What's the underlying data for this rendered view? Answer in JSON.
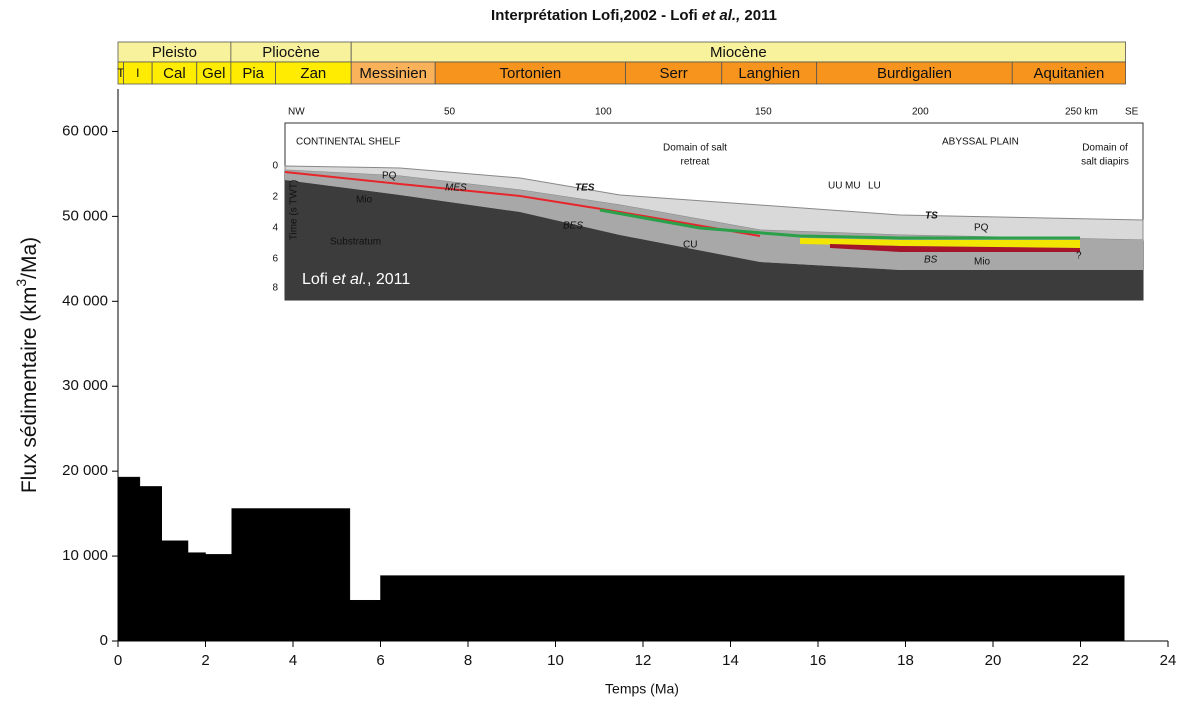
{
  "chart_data": {
    "type": "histogram",
    "title": [
      "Interprétation Lofi,2002 - Lofi ",
      "et al.,",
      "  2011"
    ],
    "ylabel": [
      "Flux sédimentaire (km",
      "3",
      "/Ma)"
    ],
    "xlabel": "Temps (Ma)",
    "bins": [
      0,
      0.5,
      1.0,
      1.6,
      2.0,
      2.6,
      5.3,
      6.0,
      23.0
    ],
    "values": [
      19300,
      18200,
      11800,
      10400,
      10200,
      15600,
      4800,
      7700
    ],
    "color": "#000000",
    "xlim": [
      0,
      24
    ],
    "xticks": [
      0,
      2,
      4,
      6,
      8,
      10,
      12,
      14,
      16,
      18,
      20,
      22,
      24
    ],
    "ylim": [
      0,
      65000
    ],
    "yticks": [
      0,
      {
        "value": 10000,
        "label": "10 000"
      },
      {
        "value": 20000,
        "label": "20 000"
      },
      {
        "value": 30000,
        "label": "30 000"
      },
      {
        "value": 40000,
        "label": "40 000"
      },
      {
        "value": 50000,
        "label": "50 000"
      },
      {
        "value": 60000,
        "label": "60 000"
      }
    ],
    "timescale": {
      "epochs": [
        {
          "name": "Pleisto",
          "start": 0,
          "end": 2.58,
          "color": "#f8f29c"
        },
        {
          "name": "Pliocène",
          "start": 2.58,
          "end": 5.33,
          "color": "#f8f29c"
        },
        {
          "name": "Miocène",
          "start": 5.33,
          "end": 23.03,
          "color": "#f8f29c"
        }
      ],
      "stages": [
        {
          "name": "T",
          "start": 0,
          "end": 0.126,
          "color": "#ffec00"
        },
        {
          "name": "I",
          "start": 0.126,
          "end": 0.78,
          "color": "#ffec00"
        },
        {
          "name": "Cal",
          "start": 0.78,
          "end": 1.8,
          "color": "#ffec00"
        },
        {
          "name": "Gel",
          "start": 1.8,
          "end": 2.58,
          "color": "#ffec00"
        },
        {
          "name": "Pia",
          "start": 2.58,
          "end": 3.6,
          "color": "#ffec00"
        },
        {
          "name": "Zan",
          "start": 3.6,
          "end": 5.33,
          "color": "#ffec00"
        },
        {
          "name": "Messinien",
          "start": 5.33,
          "end": 7.25,
          "color": "#f9b25a"
        },
        {
          "name": "Tortonien",
          "start": 7.25,
          "end": 11.6,
          "color": "#f7941d"
        },
        {
          "name": "Serr",
          "start": 11.6,
          "end": 13.8,
          "color": "#f7941d"
        },
        {
          "name": "Langhien",
          "start": 13.8,
          "end": 15.97,
          "color": "#f7941d"
        },
        {
          "name": "Burdigalien",
          "start": 15.97,
          "end": 20.44,
          "color": "#f7941d"
        },
        {
          "name": "Aquitanien",
          "start": 20.44,
          "end": 23.03,
          "color": "#f7941d"
        }
      ]
    }
  },
  "inset": {
    "nw": "NW",
    "se": "SE",
    "km": [
      "50",
      "100",
      "150",
      "200",
      "250 km"
    ],
    "depth": [
      "0",
      "2",
      "4",
      "6",
      "8"
    ],
    "time_axis": "Time (s TWT)",
    "shelf": "CONTINENTAL SHELF",
    "salt_retreat": [
      "Domain of salt",
      "retreat"
    ],
    "abyssal": "ABYSSAL PLAIN",
    "salt_diapirs": [
      "Domain of",
      "salt diapirs"
    ],
    "pq": "PQ",
    "mes": "MES",
    "mio": "Mio",
    "tes": "TES",
    "bes": "BES",
    "substratum": "Substratum",
    "cu": "CU",
    "uu": "UU",
    "mu": "MU",
    "lu": "LU",
    "ts": "TS",
    "pq2": "PQ",
    "bs": "BS",
    "mio2": "Mio",
    "q": "?",
    "credit": [
      "Lofi ",
      "et al.",
      ", 2011"
    ]
  }
}
